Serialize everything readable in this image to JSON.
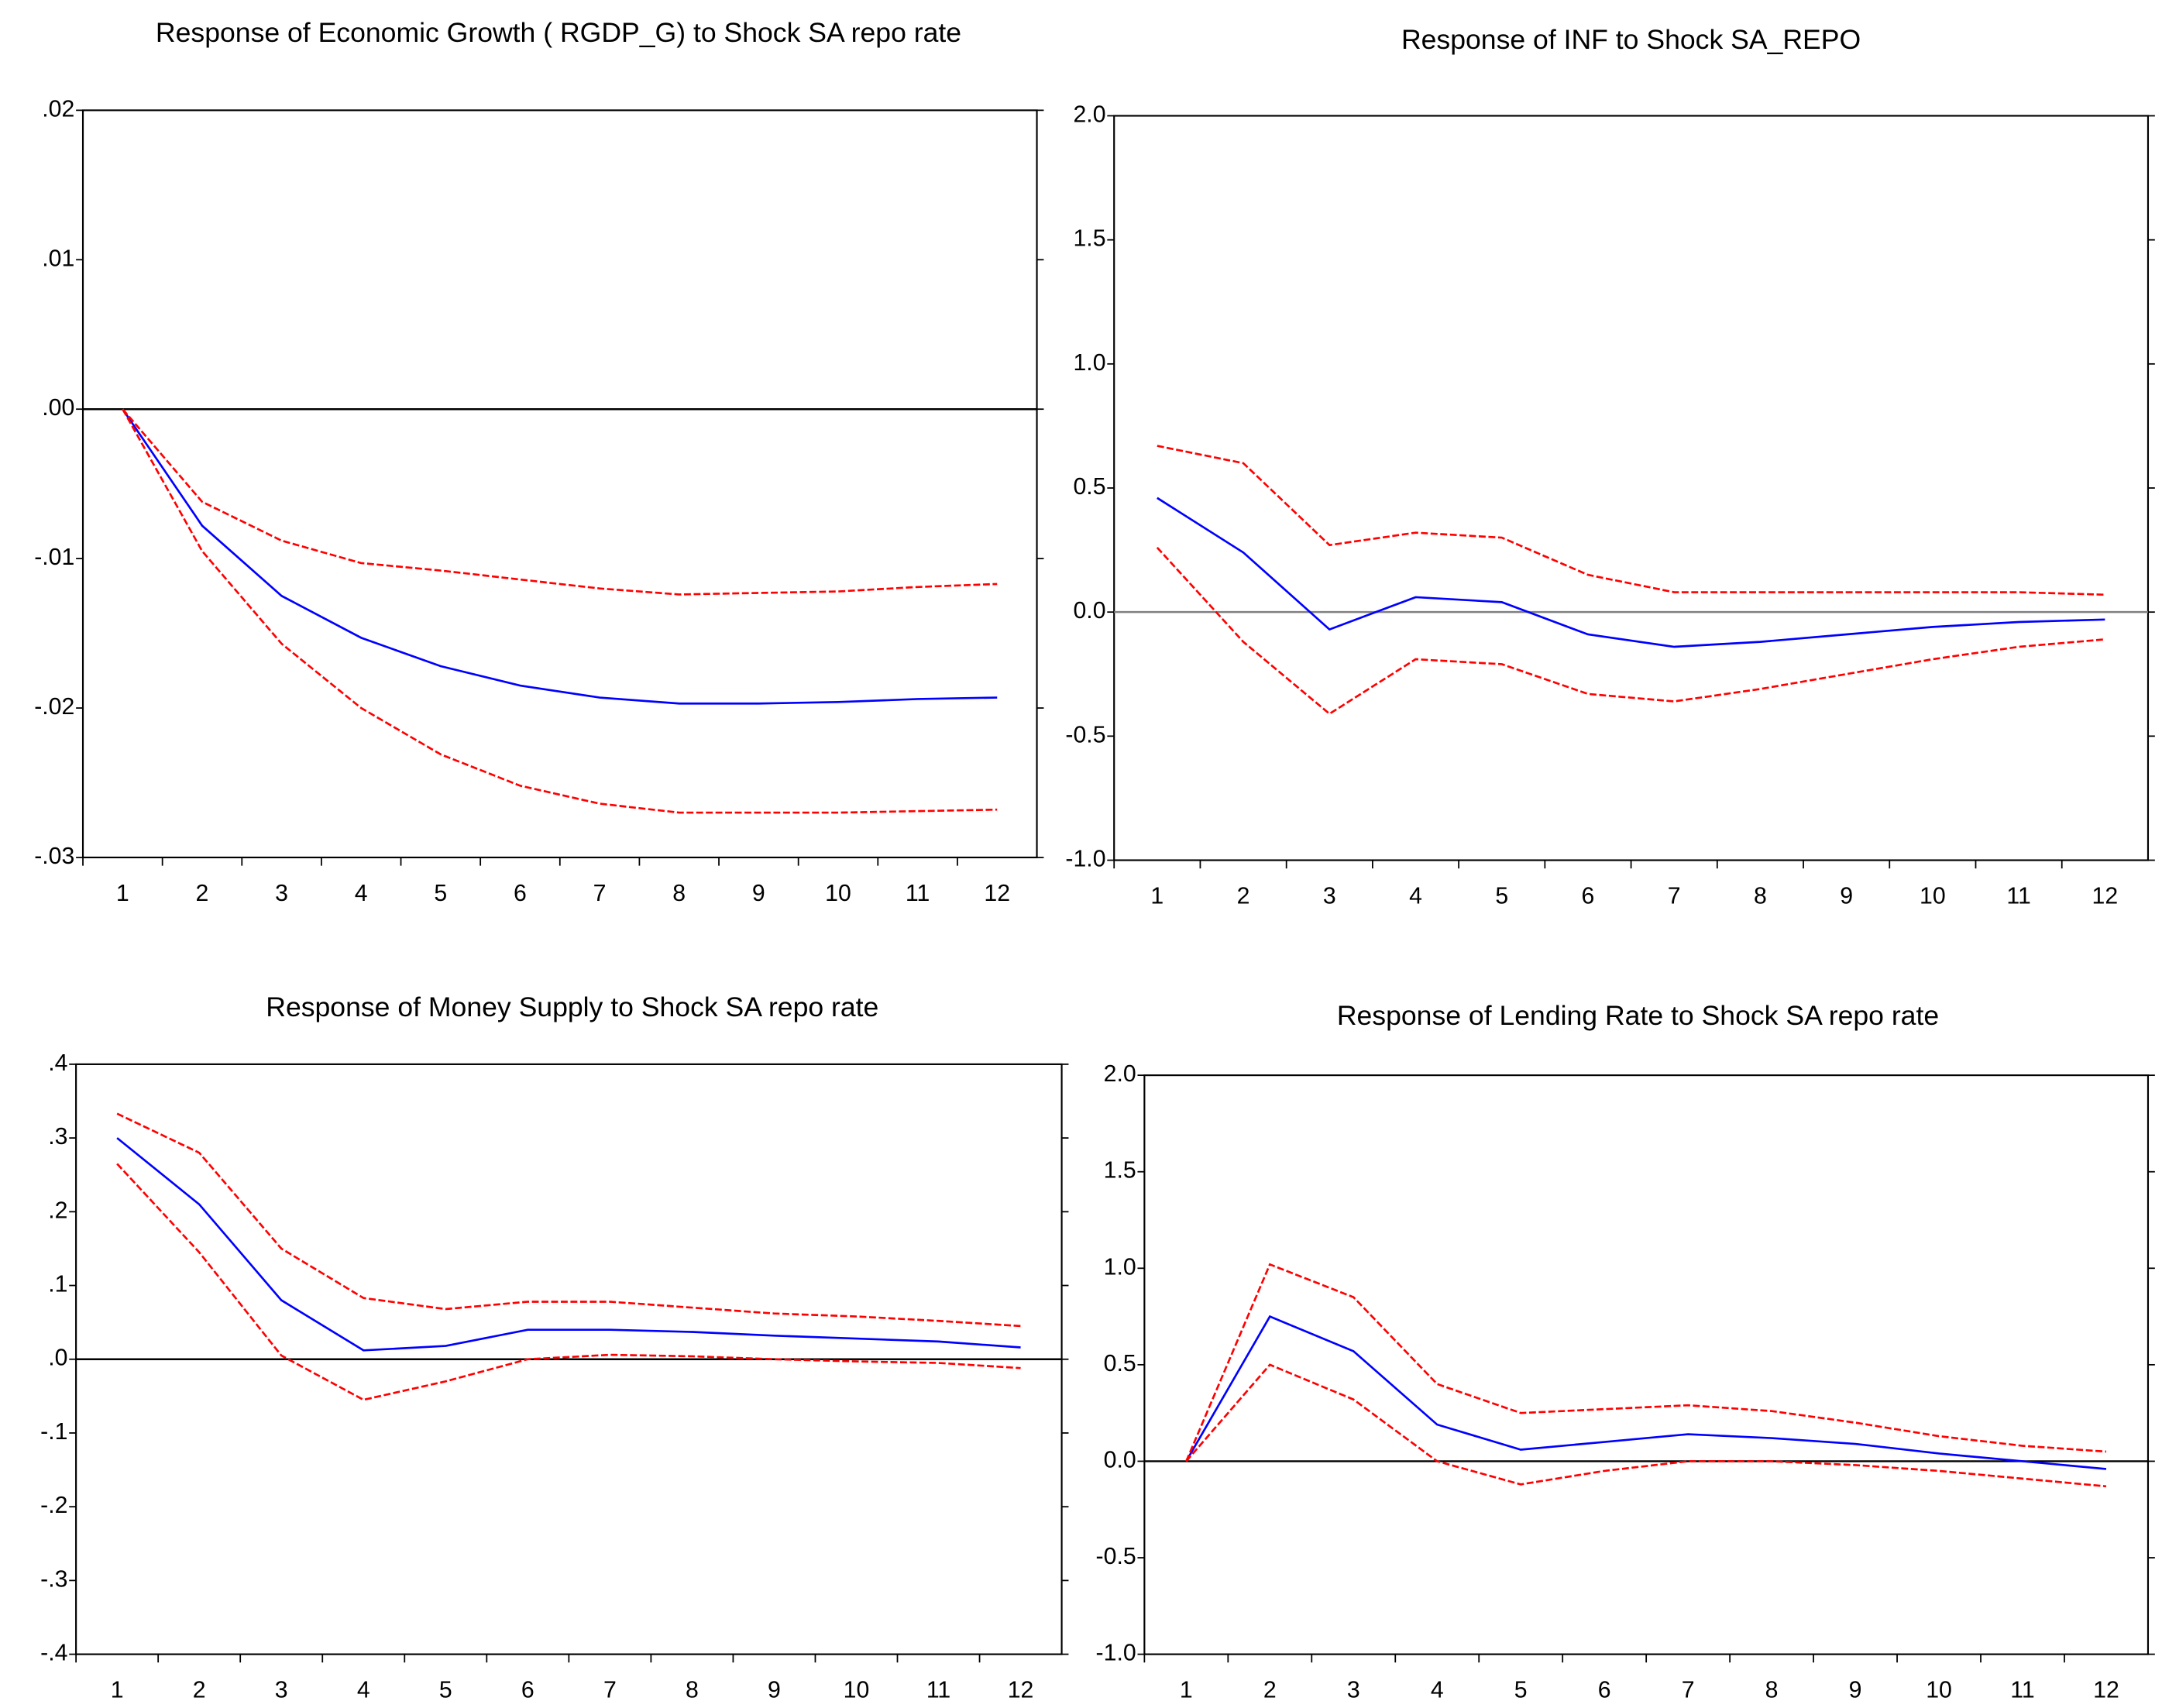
{
  "chart_data": [
    {
      "type": "line",
      "title": "Response of  Economic Growth ( RGDP_G)  to Shock SA repo rate",
      "categories": [
        "1",
        "2",
        "3",
        "4",
        "5",
        "6",
        "7",
        "8",
        "9",
        "10",
        "11",
        "12"
      ],
      "ylim": [
        -0.03,
        0.02
      ],
      "yticks": [
        {
          "value": -0.03,
          "label": "-.03"
        },
        {
          "value": -0.02,
          "label": "-.02"
        },
        {
          "value": -0.01,
          "label": "-.01"
        },
        {
          "value": 0,
          "label": ".00"
        },
        {
          "value": 0.01,
          "label": ".01"
        },
        {
          "value": 0.02,
          "label": ".02"
        }
      ],
      "zero_line_color": "#000000",
      "series": [
        {
          "color": "#0000ff",
          "style": "solid",
          "values": [
            0,
            -0.0078,
            -0.0125,
            -0.0153,
            -0.0172,
            -0.0185,
            -0.0193,
            -0.0197,
            -0.0197,
            -0.0196,
            -0.0194,
            -0.0193
          ]
        },
        {
          "color": "#ff0000",
          "style": "dashed",
          "values": [
            0,
            -0.0062,
            -0.0088,
            -0.0103,
            -0.0108,
            -0.0114,
            -0.012,
            -0.0124,
            -0.0123,
            -0.0122,
            -0.0119,
            -0.0117
          ]
        },
        {
          "color": "#ff0000",
          "style": "dashed",
          "values": [
            0,
            -0.0095,
            -0.0157,
            -0.02,
            -0.0231,
            -0.0252,
            -0.0264,
            -0.027,
            -0.027,
            -0.027,
            -0.0269,
            -0.0268
          ]
        }
      ]
    },
    {
      "type": "line",
      "title": "Response of INF to Shock SA_REPO",
      "categories": [
        "1",
        "2",
        "3",
        "4",
        "5",
        "6",
        "7",
        "8",
        "9",
        "10",
        "11",
        "12"
      ],
      "ylim": [
        -1,
        2
      ],
      "yticks": [
        {
          "value": -1,
          "label": "-1.0"
        },
        -0.5,
        {
          "value": 0,
          "label": "0.0"
        },
        0.5,
        {
          "value": 1,
          "label": "1.0"
        },
        1.5,
        {
          "value": 2,
          "label": "2.0"
        }
      ],
      "zero_line_color": "#808080",
      "series": [
        {
          "color": "#0000ff",
          "style": "solid",
          "values": [
            0.46,
            0.24,
            -0.07,
            0.06,
            0.04,
            -0.09,
            -0.14,
            -0.12,
            -0.09,
            -0.06,
            -0.04,
            -0.03
          ]
        },
        {
          "color": "#ff0000",
          "style": "dashed",
          "values": [
            0.67,
            0.6,
            0.27,
            0.32,
            0.3,
            0.15,
            0.08,
            0.08,
            0.08,
            0.08,
            0.08,
            0.07
          ]
        },
        {
          "color": "#ff0000",
          "style": "dashed",
          "values": [
            0.26,
            -0.12,
            -0.41,
            -0.19,
            -0.21,
            -0.33,
            -0.36,
            -0.31,
            -0.25,
            -0.19,
            -0.14,
            -0.11
          ]
        }
      ]
    },
    {
      "type": "line",
      "title": "Response of Money Supply to Shock SA repo rate",
      "categories": [
        "1",
        "2",
        "3",
        "4",
        "5",
        "6",
        "7",
        "8",
        "9",
        "10",
        "11",
        "12"
      ],
      "ylim": [
        -0.4,
        0.4
      ],
      "yticks": [
        {
          "value": -0.4,
          "label": "-.4"
        },
        {
          "value": -0.3,
          "label": "-.3"
        },
        {
          "value": -0.2,
          "label": "-.2"
        },
        {
          "value": -0.1,
          "label": "-.1"
        },
        {
          "value": 0,
          "label": ".0"
        },
        {
          "value": 0.1,
          "label": ".1"
        },
        {
          "value": 0.2,
          "label": ".2"
        },
        {
          "value": 0.3,
          "label": ".3"
        },
        {
          "value": 0.4,
          "label": ".4"
        }
      ],
      "zero_line_color": "#000000",
      "series": [
        {
          "color": "#0000ff",
          "style": "solid",
          "values": [
            0.3,
            0.21,
            0.08,
            0.012,
            0.018,
            0.04,
            0.04,
            0.037,
            0.032,
            0.028,
            0.024,
            0.016
          ]
        },
        {
          "color": "#ff0000",
          "style": "dashed",
          "values": [
            0.333,
            0.28,
            0.15,
            0.083,
            0.068,
            0.078,
            0.078,
            0.07,
            0.062,
            0.058,
            0.052,
            0.045
          ]
        },
        {
          "color": "#ff0000",
          "style": "dashed",
          "values": [
            0.265,
            0.145,
            0.005,
            -0.055,
            -0.03,
            0,
            0.006,
            0.004,
            0,
            -0.003,
            -0.005,
            -0.012
          ]
        }
      ]
    },
    {
      "type": "line",
      "title": "Response of Lending Rate  to Shock SA repo rate",
      "categories": [
        "1",
        "2",
        "3",
        "4",
        "5",
        "6",
        "7",
        "8",
        "9",
        "10",
        "11",
        "12"
      ],
      "ylim": [
        -1,
        2
      ],
      "yticks": [
        {
          "value": -1,
          "label": "-1.0"
        },
        -0.5,
        {
          "value": 0,
          "label": "0.0"
        },
        0.5,
        {
          "value": 1,
          "label": "1.0"
        },
        1.5,
        {
          "value": 2,
          "label": "2.0"
        }
      ],
      "zero_line_color": "#000000",
      "series": [
        {
          "color": "#0000ff",
          "style": "solid",
          "values": [
            0,
            0.75,
            0.57,
            0.19,
            0.06,
            0.1,
            0.14,
            0.12,
            0.09,
            0.04,
            0,
            -0.04
          ]
        },
        {
          "color": "#ff0000",
          "style": "dashed",
          "values": [
            0,
            1.02,
            0.85,
            0.4,
            0.25,
            0.27,
            0.29,
            0.26,
            0.2,
            0.13,
            0.08,
            0.05
          ]
        },
        {
          "color": "#ff0000",
          "style": "dashed",
          "values": [
            0,
            0.5,
            0.32,
            0,
            -0.12,
            -0.05,
            0,
            0,
            -0.02,
            -0.05,
            -0.09,
            -0.13
          ]
        }
      ]
    }
  ]
}
